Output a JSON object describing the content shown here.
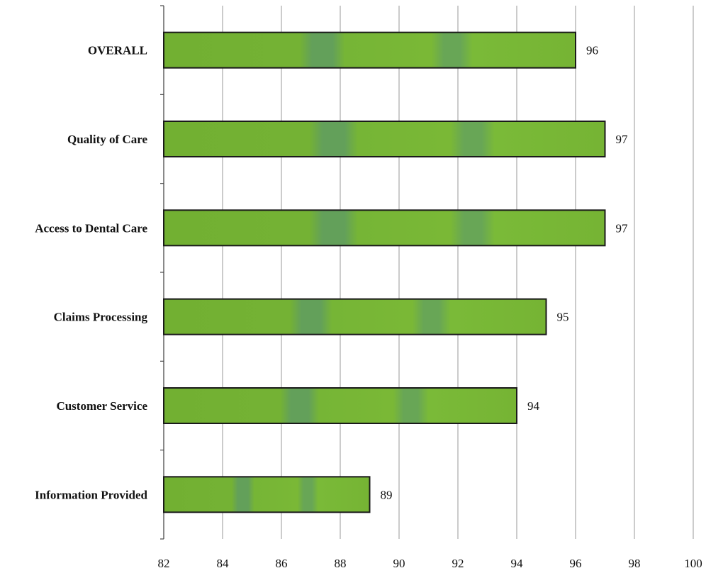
{
  "chart_data": {
    "type": "bar",
    "orientation": "horizontal",
    "categories": [
      "OVERALL",
      "Quality of Care",
      "Access to Dental Care",
      "Claims Processing",
      "Customer Service",
      "Information Provided"
    ],
    "values": [
      96,
      97,
      97,
      95,
      94,
      89
    ],
    "data_labels": [
      "96",
      "97",
      "97",
      "95",
      "94",
      "89"
    ],
    "xlim": [
      82,
      100
    ],
    "x_ticks": [
      82,
      84,
      86,
      88,
      90,
      92,
      94,
      96,
      98,
      100
    ],
    "x_tick_labels": [
      "82",
      "84",
      "86",
      "88",
      "90",
      "92",
      "94",
      "96",
      "98",
      "100"
    ],
    "title": "",
    "xlabel": "",
    "ylabel": "",
    "grid": "vertical",
    "legend": "none",
    "colors": {
      "bar_fill": "#72b032",
      "bar_fill_light": "#7cbc38",
      "bar_stripe": "#5f9a52",
      "bar_outline": "#1a1a1a",
      "grid": "#a9a9a9",
      "axis": "#4a4a4a"
    }
  }
}
